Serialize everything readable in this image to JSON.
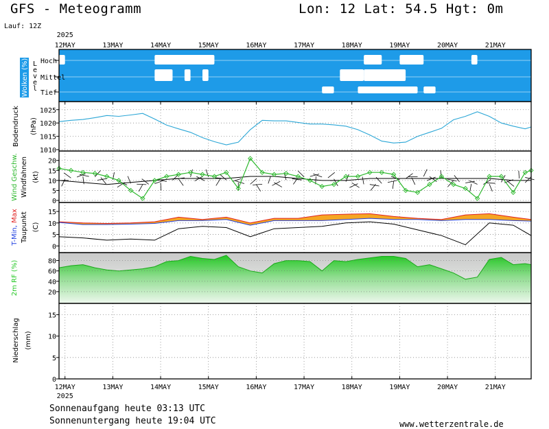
{
  "header": {
    "title": "GFS - Meteogramm",
    "coords": "Lon: 12 Lat: 54.5 Hgt: 0m",
    "run": "Lauf: 12Z"
  },
  "footer": {
    "sunrise": "Sonnenaufgang heute 03:13 UTC",
    "sunset": "Sonnenuntergang heute 19:04 UTC",
    "site": "www.wetterzentrale.de"
  },
  "colors": {
    "cloud_blue": "#1e9be8",
    "pressure_line": "#2aa6d6",
    "gust_green": "#2db82d",
    "humidity_green": "#26c826",
    "tmax_red": "#e02020",
    "tmin_blue": "#2040e0",
    "fill_orange": "#f5a623"
  },
  "chart_data": {
    "type": "line",
    "x": {
      "year_label": "2025",
      "days": [
        "12MAY",
        "13MAY",
        "14MAY",
        "15MAY",
        "16MAY",
        "17MAY",
        "18MAY",
        "19MAY",
        "20MAY",
        "21MAY"
      ],
      "range_hours": [
        0,
        237
      ]
    },
    "panels": [
      {
        "id": "clouds",
        "ylabel": "Wolken (%)",
        "level_label": "Level",
        "levels": [
          "Hoch",
          "Mittel",
          "Tief"
        ],
        "clear_patches": [
          {
            "level": "Hoch",
            "from_h": 0,
            "to_h": 3
          },
          {
            "level": "Hoch",
            "from_h": 48,
            "to_h": 78
          },
          {
            "level": "Hoch",
            "from_h": 153,
            "to_h": 162
          },
          {
            "level": "Hoch",
            "from_h": 171,
            "to_h": 183
          },
          {
            "level": "Hoch",
            "from_h": 207,
            "to_h": 210
          },
          {
            "level": "Mittel",
            "from_h": 48,
            "to_h": 57
          },
          {
            "level": "Mittel",
            "from_h": 63,
            "to_h": 66
          },
          {
            "level": "Mittel",
            "from_h": 72,
            "to_h": 75
          },
          {
            "level": "Mittel",
            "from_h": 141,
            "to_h": 153
          },
          {
            "level": "Mittel",
            "from_h": 153,
            "to_h": 174
          },
          {
            "level": "Tief",
            "from_h": 132,
            "to_h": 138
          },
          {
            "level": "Tief",
            "from_h": 150,
            "to_h": 180
          },
          {
            "level": "Tief",
            "from_h": 183,
            "to_h": 189
          }
        ]
      },
      {
        "id": "pressure",
        "ylabel": "Bodendruck",
        "unit": "(hPa)",
        "yticks": [
          1010,
          1015,
          1020,
          1025
        ],
        "ylim": [
          1010,
          1027
        ],
        "series": [
          {
            "hours": [
              0,
              6,
              12,
              18,
              24,
              30,
              36,
              42,
              48,
              54,
              60,
              66,
              72,
              78,
              84,
              90,
              96,
              102,
              108,
              114,
              120,
              126,
              132,
              138,
              144,
              150,
              156,
              162,
              168,
              174,
              180,
              186,
              192,
              198,
              204,
              210,
              216,
              222,
              228,
              234,
              237
            ],
            "values": [
              1020.5,
              1021,
              1021.3,
              1022,
              1022.8,
              1022.5,
              1023,
              1023.6,
              1021.5,
              1019.2,
              1017.8,
              1016.5,
              1014.5,
              1013,
              1011.8,
              1012.8,
              1017.5,
              1021,
              1020.8,
              1020.8,
              1020.2,
              1019.6,
              1019.6,
              1019.3,
              1018.8,
              1017.5,
              1015.5,
              1013.2,
              1012.5,
              1012.8,
              1015,
              1016.5,
              1018,
              1021.2,
              1022.5,
              1024.2,
              1022.5,
              1020,
              1018.8,
              1017.8,
              1018.5
            ]
          }
        ]
      },
      {
        "id": "wind",
        "ylabel": "Wind Geschw.",
        "ylabel2": "Windfahnen",
        "unit": "(kt)",
        "yticks": [
          0,
          5,
          10,
          15,
          20
        ],
        "ylim": [
          0,
          23
        ],
        "series": [
          {
            "name": "gusts",
            "hours": [
              0,
              6,
              12,
              18,
              24,
              30,
              36,
              42,
              48,
              54,
              60,
              66,
              72,
              78,
              84,
              90,
              96,
              102,
              108,
              114,
              120,
              126,
              132,
              138,
              144,
              150,
              156,
              162,
              168,
              174,
              180,
              186,
              192,
              198,
              204,
              210,
              216,
              222,
              228,
              234,
              237
            ],
            "values": [
              16,
              15,
              14,
              13.5,
              12,
              10,
              5,
              1,
              10,
              12,
              13,
              14,
              13,
              12,
              14,
              6,
              21,
              14,
              13,
              13.5,
              12,
              10,
              7,
              8,
              12,
              12,
              14,
              14,
              13,
              5,
              4,
              8,
              12,
              8,
              6,
              1,
              12,
              12,
              4,
              14,
              15
            ]
          },
          {
            "name": "mean",
            "hours": [
              0,
              12,
              24,
              36,
              48,
              60,
              72,
              84,
              96,
              108,
              120,
              132,
              144,
              156,
              168,
              180,
              192,
              204,
              216,
              228,
              237
            ],
            "values": [
              10,
              9,
              8,
              9,
              10,
              11,
              11,
              11,
              12,
              12,
              11,
              10,
              10,
              11,
              11,
              11,
              11,
              11,
              11,
              10,
              10
            ]
          }
        ]
      },
      {
        "id": "temperature",
        "ylabel": "T-Min, Max",
        "ylabel2": "Taupunkt",
        "unit": "(C)",
        "yticks": [
          0,
          5,
          10,
          15
        ],
        "ylim": [
          -2,
          18
        ],
        "series": [
          {
            "name": "tmax",
            "hours": [
              0,
              12,
              24,
              36,
              48,
              60,
              72,
              84,
              96,
              108,
              120,
              132,
              144,
              156,
              168,
              180,
              192,
              204,
              216,
              228,
              237
            ],
            "values": [
              10.5,
              10,
              9.8,
              10,
              10.5,
              12.5,
              11.5,
              12.5,
              10,
              12,
              12,
              13.5,
              13.8,
              14,
              12.8,
              12,
              11.5,
              13.5,
              14,
              12.5,
              11.5
            ]
          },
          {
            "name": "tmin",
            "hours": [
              0,
              12,
              24,
              36,
              48,
              60,
              72,
              84,
              96,
              108,
              120,
              132,
              144,
              156,
              168,
              180,
              192,
              204,
              216,
              228,
              237
            ],
            "values": [
              10.2,
              9.3,
              9.3,
              9.5,
              9.8,
              11,
              11,
              11.5,
              9,
              11,
              11,
              11,
              11.5,
              12,
              11.5,
              11.5,
              11,
              11.5,
              11.5,
              11,
              10.8
            ]
          },
          {
            "name": "dewpoint",
            "hours": [
              0,
              12,
              24,
              36,
              48,
              60,
              72,
              84,
              96,
              108,
              120,
              132,
              144,
              156,
              168,
              180,
              192,
              204,
              216,
              228,
              237
            ],
            "values": [
              4,
              3.5,
              2.5,
              3,
              2.5,
              7.5,
              8.5,
              8,
              4,
              7.5,
              8,
              8.5,
              10,
              10.5,
              9.5,
              7,
              4.5,
              0.5,
              10,
              9,
              4.5
            ]
          }
        ]
      },
      {
        "id": "humidity",
        "ylabel": "2m RF (%)",
        "yticks": [
          20,
          40,
          60,
          80
        ],
        "ylim": [
          0,
          90
        ],
        "series": [
          {
            "hours": [
              0,
              6,
              12,
              18,
              24,
              30,
              36,
              42,
              48,
              54,
              60,
              66,
              72,
              78,
              84,
              90,
              96,
              102,
              108,
              114,
              120,
              126,
              132,
              138,
              144,
              150,
              156,
              162,
              168,
              174,
              180,
              186,
              192,
              198,
              204,
              210,
              216,
              222,
              228,
              234,
              237
            ],
            "values": [
              66,
              70,
              72,
              66,
              62,
              60,
              62,
              64,
              68,
              78,
              80,
              88,
              84,
              82,
              90,
              68,
              60,
              56,
              74,
              80,
              80,
              78,
              60,
              80,
              78,
              82,
              85,
              88,
              88,
              84,
              68,
              72,
              64,
              56,
              44,
              48,
              82,
              86,
              72,
              74,
              72
            ]
          }
        ]
      },
      {
        "id": "precip",
        "ylabel": "Niederschlag",
        "unit": "(mm)",
        "yticks": [
          0,
          5,
          10,
          15
        ],
        "ylim": [
          0,
          17
        ],
        "series": [
          {
            "hours": [],
            "values": []
          }
        ]
      }
    ]
  }
}
